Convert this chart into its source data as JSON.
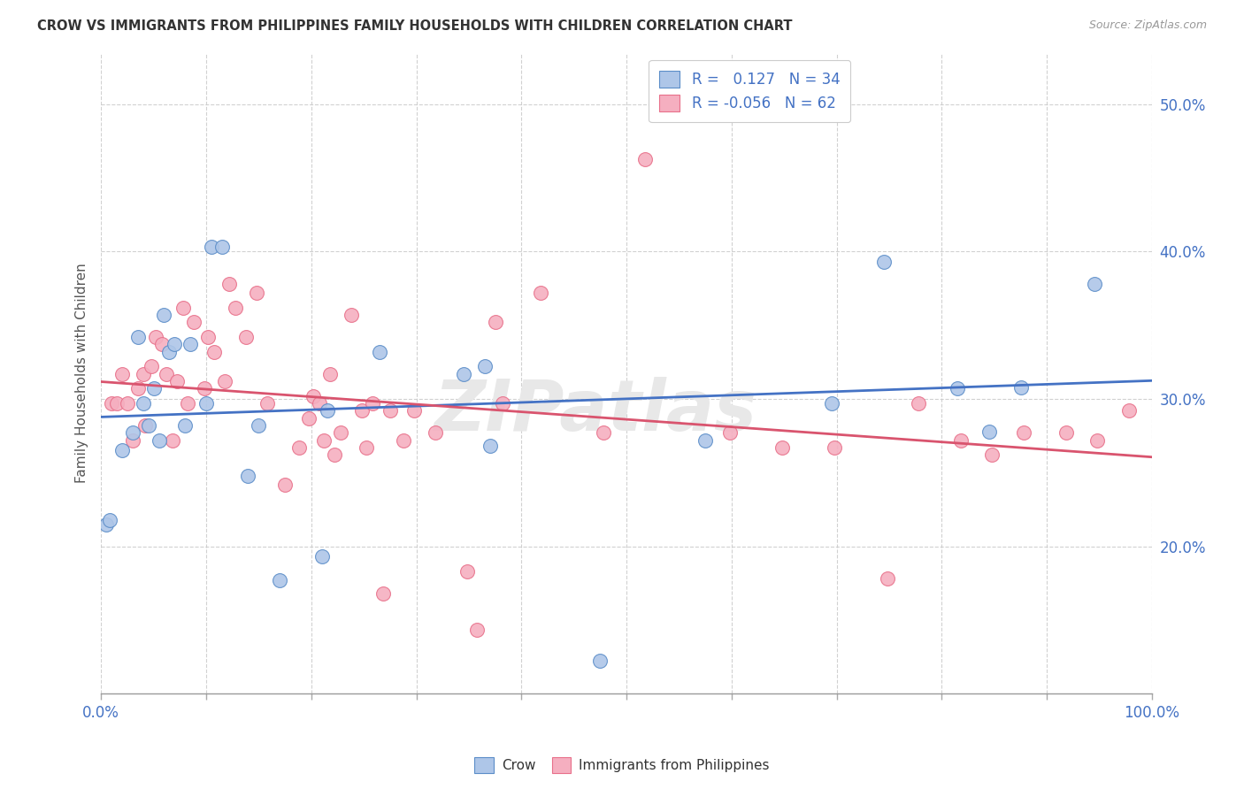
{
  "title": "CROW VS IMMIGRANTS FROM PHILIPPINES FAMILY HOUSEHOLDS WITH CHILDREN CORRELATION CHART",
  "source": "Source: ZipAtlas.com",
  "ylabel": "Family Households with Children",
  "watermark": "ZIPatlas",
  "legend_crow_r": "0.127",
  "legend_crow_n": "34",
  "legend_immig_r": "-0.056",
  "legend_immig_n": "62",
  "crow_color": "#aec6e8",
  "immig_color": "#f5afc0",
  "crow_edge_color": "#5b8dc8",
  "immig_edge_color": "#e8708a",
  "crow_line_color": "#4472c4",
  "immig_line_color": "#d9546e",
  "xlim": [
    0.0,
    1.0
  ],
  "ylim": [
    0.1,
    0.535
  ],
  "yticks": [
    0.2,
    0.3,
    0.4,
    0.5
  ],
  "yticklabels": [
    "20.0%",
    "30.0%",
    "40.0%",
    "50.0%"
  ],
  "crow_x": [
    0.005,
    0.008,
    0.02,
    0.03,
    0.035,
    0.04,
    0.045,
    0.05,
    0.055,
    0.06,
    0.065,
    0.07,
    0.08,
    0.085,
    0.1,
    0.105,
    0.115,
    0.14,
    0.15,
    0.17,
    0.21,
    0.215,
    0.265,
    0.345,
    0.365,
    0.37,
    0.475,
    0.575,
    0.695,
    0.745,
    0.815,
    0.845,
    0.875,
    0.945
  ],
  "crow_y": [
    0.215,
    0.218,
    0.265,
    0.277,
    0.342,
    0.297,
    0.282,
    0.307,
    0.272,
    0.357,
    0.332,
    0.337,
    0.282,
    0.337,
    0.297,
    0.403,
    0.403,
    0.248,
    0.282,
    0.177,
    0.193,
    0.292,
    0.332,
    0.317,
    0.322,
    0.268,
    0.122,
    0.272,
    0.297,
    0.393,
    0.307,
    0.278,
    0.308,
    0.378
  ],
  "immig_x": [
    0.01,
    0.015,
    0.02,
    0.025,
    0.03,
    0.035,
    0.04,
    0.042,
    0.048,
    0.052,
    0.058,
    0.062,
    0.068,
    0.072,
    0.078,
    0.082,
    0.088,
    0.098,
    0.102,
    0.108,
    0.118,
    0.122,
    0.128,
    0.138,
    0.148,
    0.158,
    0.175,
    0.188,
    0.198,
    0.202,
    0.208,
    0.212,
    0.218,
    0.222,
    0.228,
    0.238,
    0.248,
    0.252,
    0.258,
    0.268,
    0.275,
    0.288,
    0.298,
    0.318,
    0.348,
    0.358,
    0.375,
    0.382,
    0.418,
    0.478,
    0.518,
    0.598,
    0.648,
    0.698,
    0.748,
    0.778,
    0.818,
    0.848,
    0.878,
    0.918,
    0.948,
    0.978
  ],
  "immig_y": [
    0.297,
    0.297,
    0.317,
    0.297,
    0.272,
    0.307,
    0.317,
    0.282,
    0.322,
    0.342,
    0.337,
    0.317,
    0.272,
    0.312,
    0.362,
    0.297,
    0.352,
    0.307,
    0.342,
    0.332,
    0.312,
    0.378,
    0.362,
    0.342,
    0.372,
    0.297,
    0.242,
    0.267,
    0.287,
    0.302,
    0.297,
    0.272,
    0.317,
    0.262,
    0.277,
    0.357,
    0.292,
    0.267,
    0.297,
    0.168,
    0.292,
    0.272,
    0.292,
    0.277,
    0.183,
    0.143,
    0.352,
    0.297,
    0.372,
    0.277,
    0.463,
    0.277,
    0.267,
    0.267,
    0.178,
    0.297,
    0.272,
    0.262,
    0.277,
    0.277,
    0.272,
    0.292
  ]
}
